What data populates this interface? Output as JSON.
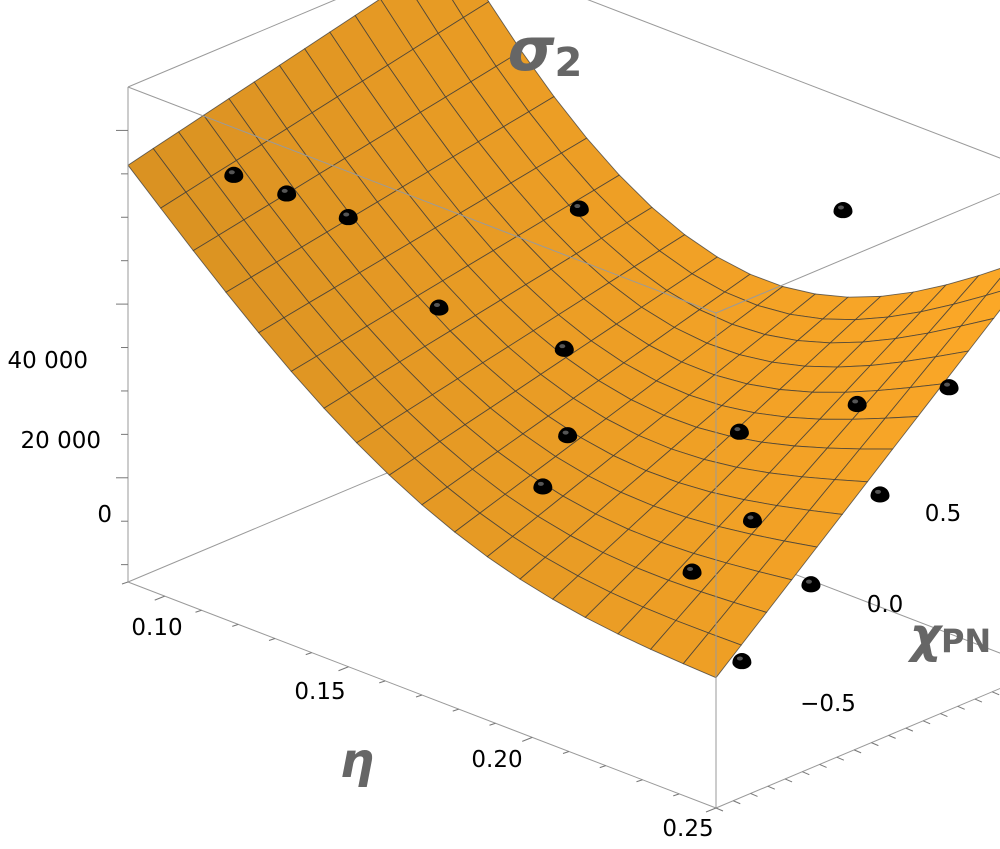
{
  "chart_data": {
    "type": "surface3d",
    "title": "σ",
    "title_subscript": "2",
    "xlabel": "η",
    "ylabel": "χ",
    "ylabel_subscript": "PN",
    "zlabel": "",
    "xlim": [
      0.09,
      0.25
    ],
    "ylim": [
      -0.95,
      0.95
    ],
    "zlim": [
      -12000,
      45000
    ],
    "x_ticks": [
      "0.10",
      "0.15",
      "0.20",
      "0.25"
    ],
    "y_ticks": [
      "−0.5",
      "0.0",
      "0.5"
    ],
    "z_ticks": [
      "0",
      "20 000",
      "40 000"
    ],
    "surface_color": "#f7a530",
    "point_color": "#000000",
    "mesh": {
      "x_lines": 18,
      "y_lines": 13
    },
    "surface_corners": [
      {
        "x": 0.09,
        "y": -0.95,
        "z": 36000
      },
      {
        "x": 0.09,
        "y": 0.95,
        "z": 36000
      },
      {
        "x": 0.25,
        "y": -0.95,
        "z": 3000
      },
      {
        "x": 0.25,
        "y": 0.95,
        "z": 36000
      }
    ],
    "points": [
      {
        "x": 0.25,
        "y": -0.8,
        "z": 3500
      },
      {
        "x": 0.25,
        "y": -0.4,
        "z": 9000
      },
      {
        "x": 0.25,
        "y": 0.0,
        "z": 16000
      },
      {
        "x": 0.25,
        "y": 0.4,
        "z": 25000
      },
      {
        "x": 0.25,
        "y": 0.8,
        "z": 33000
      },
      {
        "x": 0.22,
        "y": -0.45,
        "z": 6000
      },
      {
        "x": 0.22,
        "y": -0.1,
        "z": 9000
      },
      {
        "x": 0.225,
        "y": 0.4,
        "z": 19000
      },
      {
        "x": 0.2,
        "y": 0.25,
        "z": 13000
      },
      {
        "x": 0.17,
        "y": -0.25,
        "z": 6000
      },
      {
        "x": 0.165,
        "y": 0.0,
        "z": 9000
      },
      {
        "x": 0.15,
        "y": 0.3,
        "z": 14000
      },
      {
        "x": 0.14,
        "y": 0.6,
        "z": 26000
      },
      {
        "x": 0.13,
        "y": 0.0,
        "z": 18000
      },
      {
        "x": 0.11,
        "y": -0.1,
        "z": 26000
      },
      {
        "x": 0.105,
        "y": -0.35,
        "z": 30000
      },
      {
        "x": 0.1,
        "y": -0.55,
        "z": 33000
      },
      {
        "x": 0.2,
        "y": 0.85,
        "z": 33500
      }
    ]
  }
}
